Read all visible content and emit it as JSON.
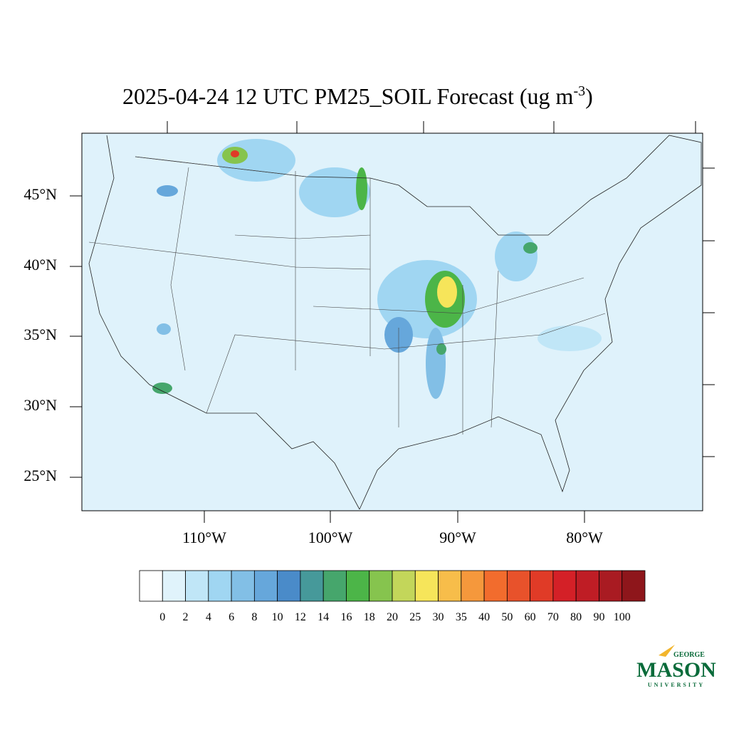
{
  "title": {
    "main": "2025-04-24 12 UTC PM25_SOIL Forecast (ug m",
    "superscript": "-3",
    "close": ")"
  },
  "map": {
    "lat_labels": [
      "45°N",
      "40°N",
      "35°N",
      "30°N",
      "25°N"
    ],
    "lon_labels": [
      "110°W",
      "100°W",
      "90°W",
      "80°W"
    ]
  },
  "colorbar": {
    "levels": [
      0,
      2,
      4,
      6,
      8,
      10,
      12,
      14,
      16,
      18,
      20,
      25,
      30,
      35,
      40,
      50,
      60,
      70,
      80,
      90,
      100
    ],
    "colors": [
      "#ffffff",
      "#e0f3fb",
      "#c0e6f7",
      "#a0d6f2",
      "#82bfe6",
      "#66a7db",
      "#4a8bc9",
      "#46999a",
      "#46a66c",
      "#4cb548",
      "#86c44e",
      "#c3d65a",
      "#f6e55a",
      "#f7bd4a",
      "#f5983c",
      "#f26c2d",
      "#e8522b",
      "#e03b27",
      "#d42027",
      "#bf1d25",
      "#a91b22",
      "#8e161b"
    ]
  },
  "logo": {
    "top": "GEORGE",
    "main": "MASON",
    "bottom": "UNIVERSITY"
  }
}
